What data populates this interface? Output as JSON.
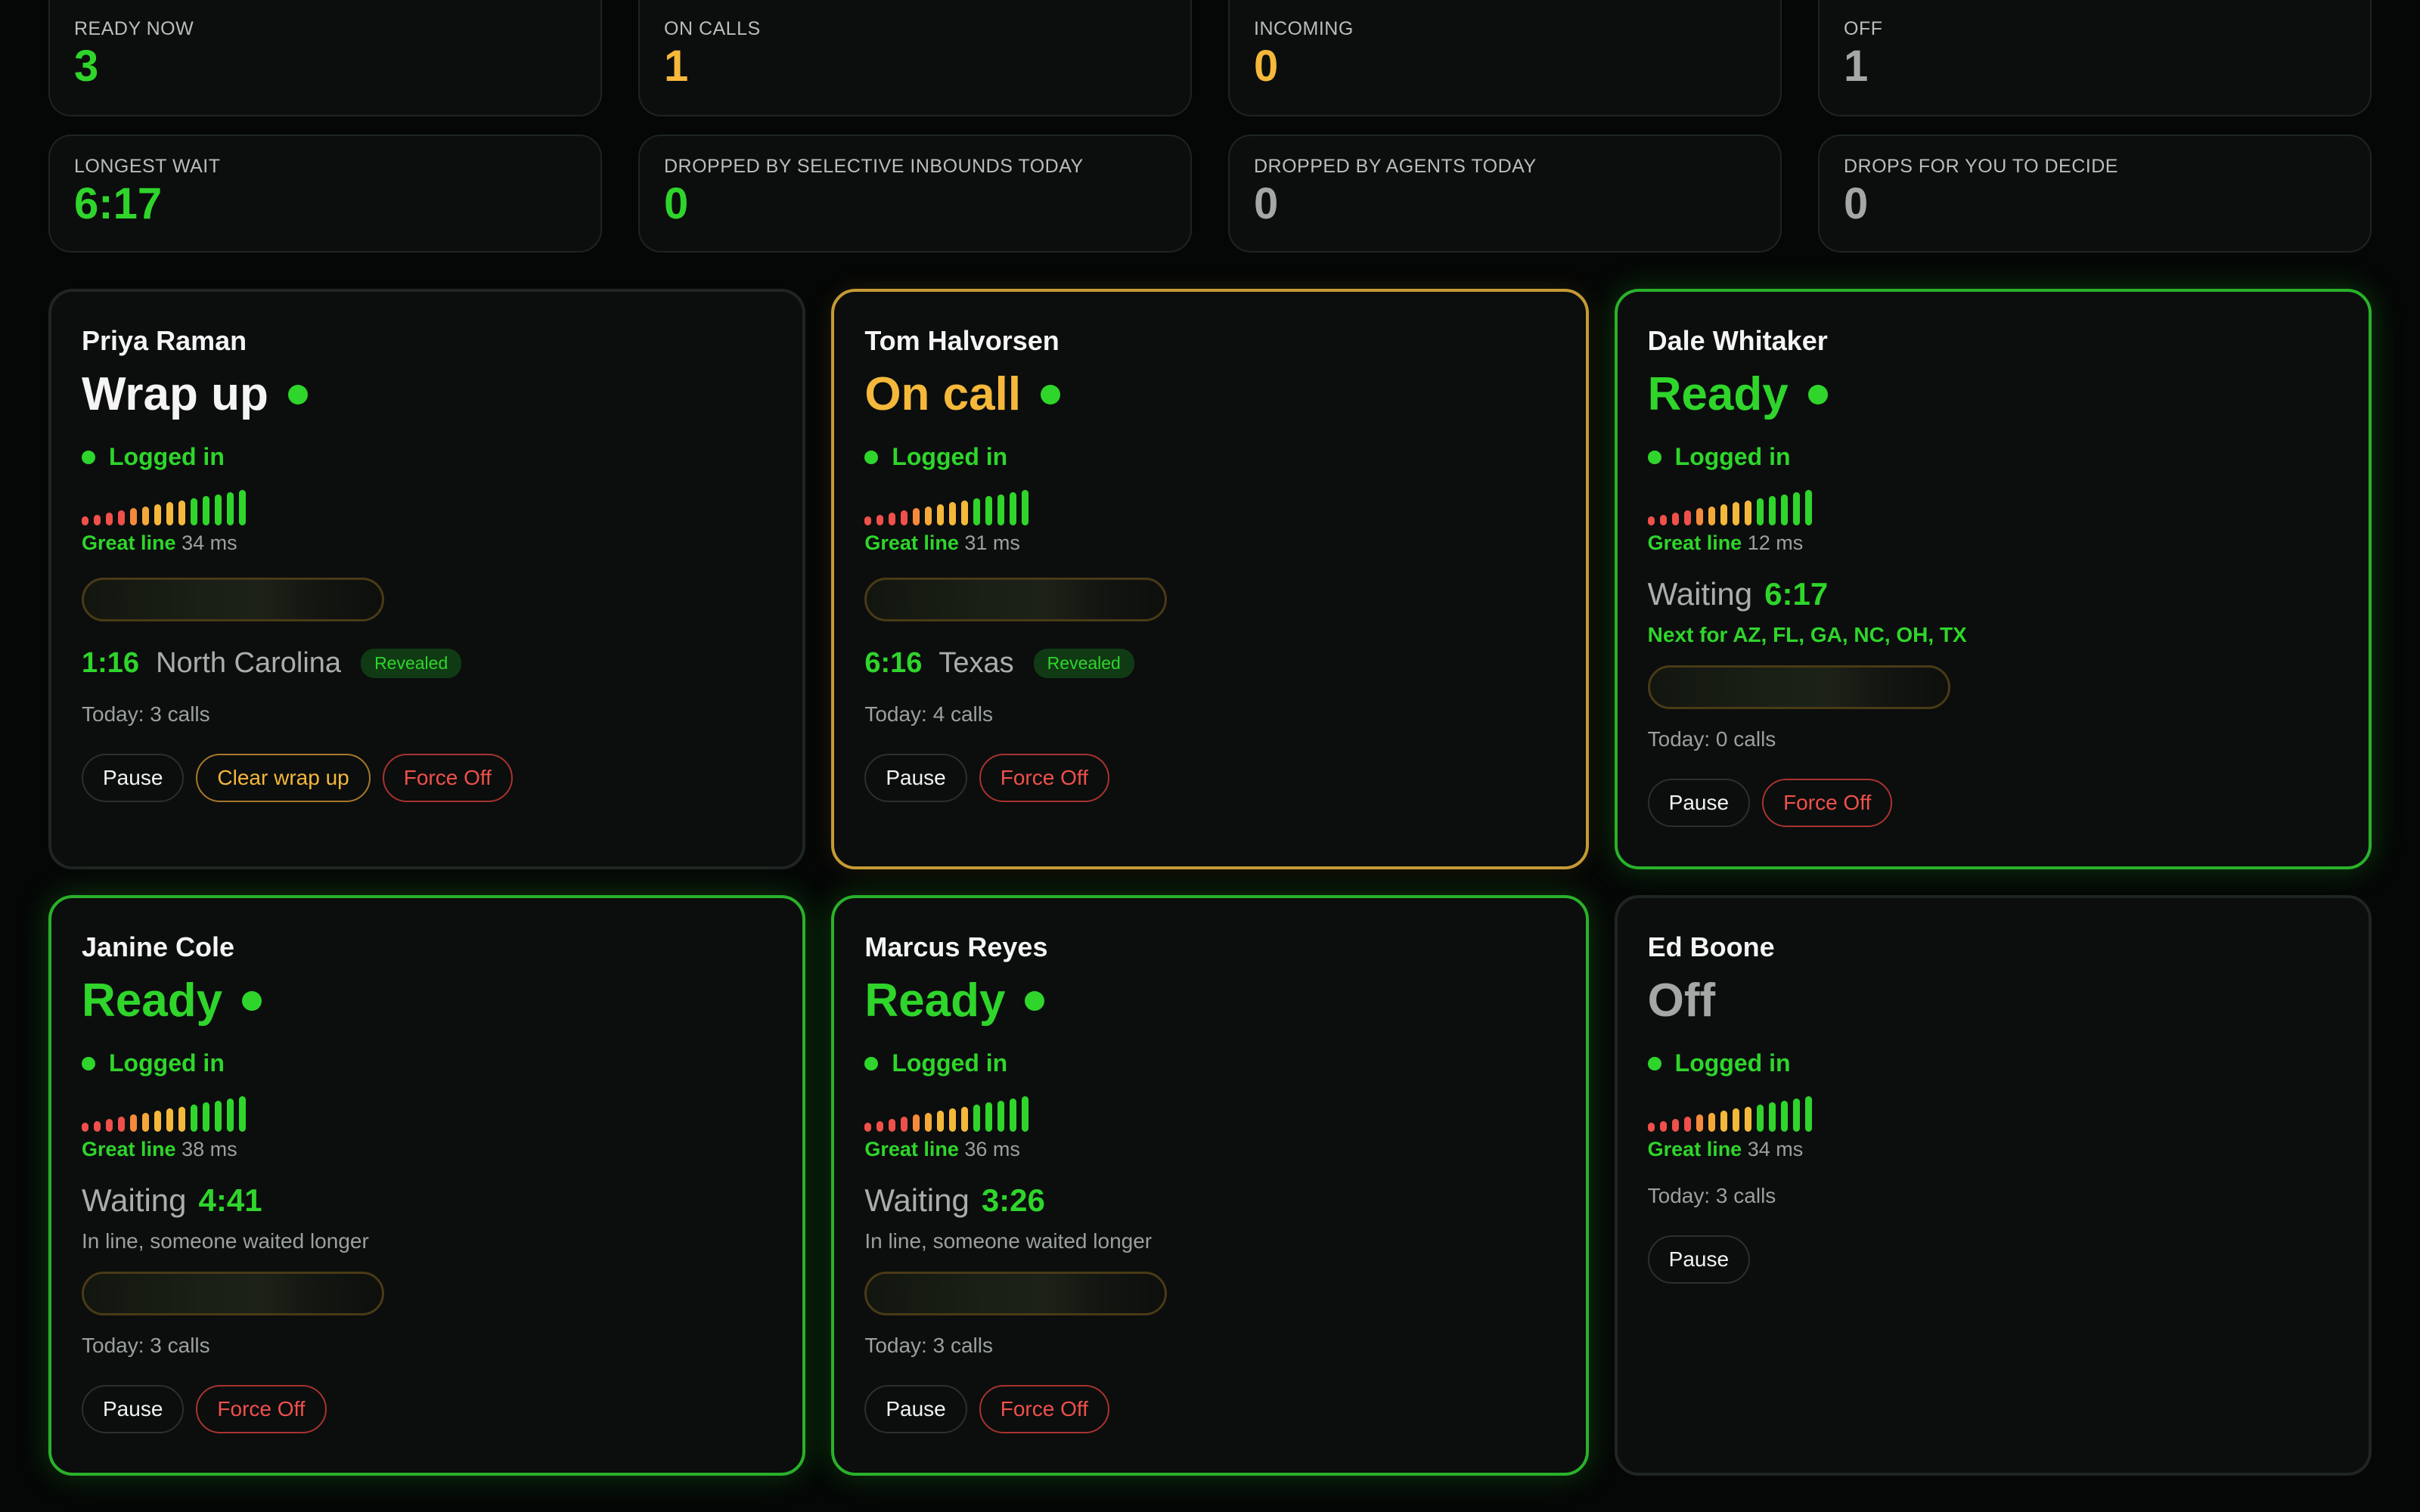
{
  "stats": [
    [
      {
        "label": "READY NOW",
        "value": "3",
        "color": "#2fd52b"
      },
      {
        "label": "ON CALLS",
        "value": "1",
        "color": "#f5b83a"
      },
      {
        "label": "INCOMING",
        "value": "0",
        "color": "#f5b83a"
      },
      {
        "label": "OFF",
        "value": "1",
        "color": "#a3a8a6"
      }
    ],
    [
      {
        "label": "LONGEST WAIT",
        "value": "6:17",
        "color": "#2fd52b"
      },
      {
        "label": "DROPPED BY SELECTIVE INBOUNDS TODAY",
        "value": "0",
        "color": "#2fd52b"
      },
      {
        "label": "DROPPED BY AGENTS TODAY",
        "value": "0",
        "color": "#a3a8a6"
      },
      {
        "label": "DROPS FOR YOU TO DECIDE",
        "value": "0",
        "color": "#a3a8a6"
      }
    ]
  ],
  "colors": {
    "ready": "#2fd52b",
    "on_call": "#f5b83a",
    "wrap_up": "#f4f4f4",
    "off": "#a3a8a6",
    "force_off": "#f0504a"
  },
  "agents": [
    {
      "name": "Priya Raman",
      "status": "Wrap up",
      "status_color": "#f4f4f4",
      "status_dot": true,
      "border": "neutral",
      "logged": "Logged in",
      "quality": "Great line",
      "latency": "34 ms",
      "call": {
        "time": "1:16",
        "place": "North Carolina",
        "badge": "Revealed"
      },
      "today": "Today: 3 calls",
      "buttons": [
        {
          "label": "Pause",
          "style": "neutral"
        },
        {
          "label": "Clear wrap up",
          "style": "amber"
        },
        {
          "label": "Force Off",
          "style": "red"
        }
      ]
    },
    {
      "name": "Tom Halvorsen",
      "status": "On call",
      "status_color": "#f5b83a",
      "status_dot": true,
      "border": "amber",
      "logged": "Logged in",
      "quality": "Great line",
      "latency": "31 ms",
      "call": {
        "time": "6:16",
        "place": "Texas",
        "badge": "Revealed"
      },
      "today": "Today: 4 calls",
      "buttons": [
        {
          "label": "Pause",
          "style": "neutral"
        },
        {
          "label": "Force Off",
          "style": "red"
        }
      ]
    },
    {
      "name": "Dale Whitaker",
      "status": "Ready",
      "status_color": "#2fd52b",
      "status_dot": true,
      "border": "green",
      "logged": "Logged in",
      "quality": "Great line",
      "latency": "12 ms",
      "waiting": {
        "label": "Waiting",
        "time": "6:17"
      },
      "sub": {
        "text": "Next for AZ, FL, GA, NC, OH, TX",
        "style": "green"
      },
      "today": "Today: 0 calls",
      "buttons": [
        {
          "label": "Pause",
          "style": "neutral"
        },
        {
          "label": "Force Off",
          "style": "red"
        }
      ]
    },
    {
      "name": "Janine Cole",
      "status": "Ready",
      "status_color": "#2fd52b",
      "status_dot": true,
      "border": "green",
      "logged": "Logged in",
      "quality": "Great line",
      "latency": "38 ms",
      "waiting": {
        "label": "Waiting",
        "time": "4:41"
      },
      "sub": {
        "text": "In line, someone waited longer",
        "style": "gray"
      },
      "today": "Today: 3 calls",
      "buttons": [
        {
          "label": "Pause",
          "style": "neutral"
        },
        {
          "label": "Force Off",
          "style": "red"
        }
      ]
    },
    {
      "name": "Marcus Reyes",
      "status": "Ready",
      "status_color": "#2fd52b",
      "status_dot": true,
      "border": "green",
      "logged": "Logged in",
      "quality": "Great line",
      "latency": "36 ms",
      "waiting": {
        "label": "Waiting",
        "time": "3:26"
      },
      "sub": {
        "text": "In line, someone waited longer",
        "style": "gray"
      },
      "today": "Today: 3 calls",
      "buttons": [
        {
          "label": "Pause",
          "style": "neutral"
        },
        {
          "label": "Force Off",
          "style": "red"
        }
      ]
    },
    {
      "name": "Ed Boone",
      "status": "Off",
      "status_color": "#a3a8a6",
      "status_dot": false,
      "border": "neutral",
      "logged": "Logged in",
      "quality": "Great line",
      "latency": "34 ms",
      "today": "Today: 3 calls",
      "buttons": [
        {
          "label": "Pause",
          "style": "neutral"
        }
      ]
    }
  ]
}
